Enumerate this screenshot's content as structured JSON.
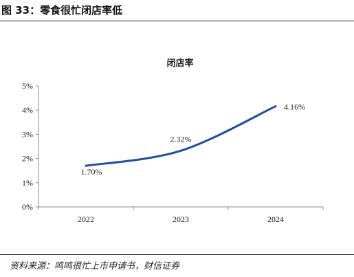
{
  "figure": {
    "title": "图 33：零食很忙闭店率低",
    "source": "资料来源：鸣鸣很忙上市申请书，财信证券"
  },
  "chart_data": {
    "type": "line",
    "title": "闭店率",
    "categories": [
      "2022",
      "2023",
      "2024"
    ],
    "series": [
      {
        "values": [
          1.7,
          2.32,
          4.16
        ],
        "labels": [
          "1.70%",
          "2.32%",
          "4.16%"
        ],
        "color": "#1f4e9e"
      }
    ],
    "ylim": [
      0,
      5
    ],
    "yticks": [
      0,
      1,
      2,
      3,
      4,
      5
    ],
    "ytick_labels": [
      "0%",
      "1%",
      "2%",
      "3%",
      "4%",
      "5%"
    ],
    "grid": false,
    "legend": "none",
    "smooth": true
  }
}
